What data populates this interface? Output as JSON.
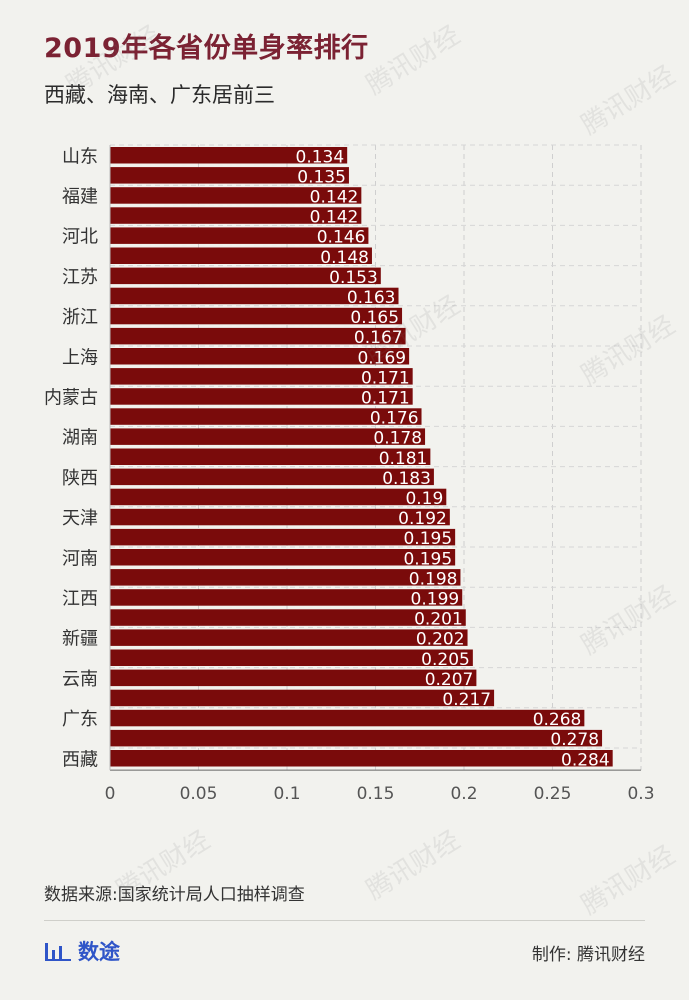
{
  "header": {
    "title": "2019年各省份单身率排行",
    "subtitle": "西藏、海南、广东居前三"
  },
  "footer": {
    "source": "数据来源:国家统计局人口抽样调查",
    "logo_text": "数途",
    "credit": "制作: 腾讯财经",
    "watermark": "腾讯财经"
  },
  "colors": {
    "bar": "#7a0b0b",
    "title": "#7b2233",
    "logo": "#2f55c8"
  },
  "chart_data": {
    "type": "bar",
    "orientation": "horizontal",
    "categories": [
      "山东",
      "",
      "福建",
      "",
      "河北",
      "",
      "江苏",
      "",
      "浙江",
      "",
      "上海",
      "",
      "内蒙古",
      "",
      "湖南",
      "",
      "陕西",
      "",
      "天津",
      "",
      "河南",
      "",
      "江西",
      "",
      "新疆",
      "",
      "云南",
      "",
      "广东",
      "",
      "西藏"
    ],
    "values": [
      0.134,
      0.135,
      0.142,
      0.142,
      0.146,
      0.148,
      0.153,
      0.163,
      0.165,
      0.167,
      0.169,
      0.171,
      0.171,
      0.176,
      0.178,
      0.181,
      0.183,
      0.19,
      0.192,
      0.195,
      0.195,
      0.198,
      0.199,
      0.201,
      0.202,
      0.205,
      0.207,
      0.217,
      0.268,
      0.278,
      0.284
    ],
    "data_labels": [
      "0.134",
      "0.135",
      "0.142",
      "0.142",
      "0.146",
      "0.148",
      "0.153",
      "0.163",
      "0.165",
      "0.167",
      "0.169",
      "0.171",
      "0.171",
      "0.176",
      "0.178",
      "0.181",
      "0.183",
      "0.19",
      "0.192",
      "0.195",
      "0.195",
      "0.198",
      "0.199",
      "0.201",
      "0.202",
      "0.205",
      "0.207",
      "0.217",
      "0.268",
      "0.278",
      "0.284"
    ],
    "xlim": [
      0,
      0.3
    ],
    "xticks": [
      "0",
      "0.05",
      "0.1",
      "0.15",
      "0.2",
      "0.25",
      "0.3"
    ],
    "grid": true
  }
}
